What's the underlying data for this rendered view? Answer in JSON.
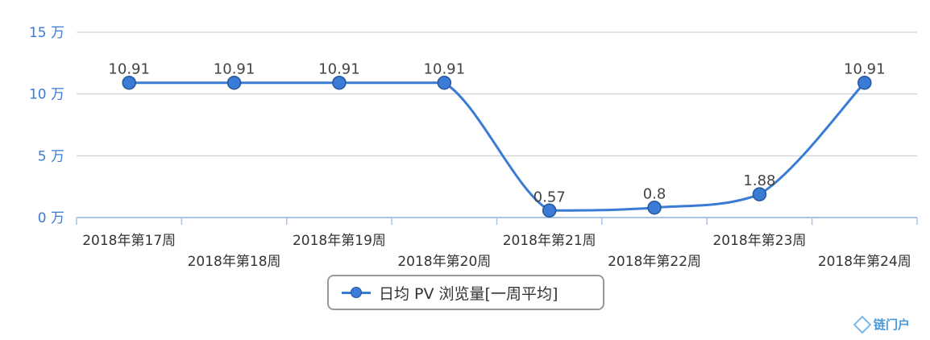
{
  "chart_data": {
    "type": "line",
    "categories": [
      "2018年第17周",
      "2018年第18周",
      "2018年第19周",
      "2018年第20周",
      "2018年第21周",
      "2018年第22周",
      "2018年第23周",
      "2018年第24周"
    ],
    "series": [
      {
        "name": "日均 PV 浏览量[一周平均]",
        "values": [
          10.91,
          10.91,
          10.91,
          10.91,
          0.57,
          0.8,
          1.88,
          10.91
        ],
        "labels": [
          "10.91",
          "10.91",
          "10.91",
          "10.91",
          "0.57",
          "0.8",
          "1.88",
          "10.91"
        ],
        "color": "#3a7bd5"
      }
    ],
    "yticks": [
      "0 万",
      "5 万",
      "10 万",
      "15 万"
    ],
    "ytick_values": [
      0,
      5,
      10,
      15
    ],
    "ylim": [
      0,
      15
    ],
    "grid": true,
    "legend_position": "bottom-center"
  },
  "watermark": {
    "text": "链门户",
    "icon": "diamond-logo-icon"
  }
}
